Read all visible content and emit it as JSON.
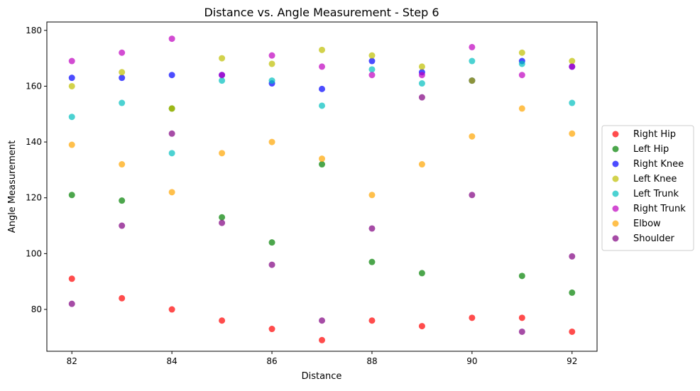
{
  "chart_data": {
    "type": "scatter",
    "title": "Distance vs. Angle Measurement - Step 6",
    "xlabel": "Distance",
    "ylabel": "Angle Measurement",
    "xlim": [
      81.5,
      92.5
    ],
    "ylim": [
      65,
      183
    ],
    "xticks": [
      82,
      84,
      86,
      88,
      90,
      92
    ],
    "yticks": [
      80,
      100,
      120,
      140,
      160,
      180
    ],
    "x": [
      82,
      83,
      84,
      85,
      86,
      87,
      88,
      89,
      90,
      91,
      92
    ],
    "grid": false,
    "legend_position": "center-right, outside plot",
    "series": [
      {
        "name": "Right Hip",
        "color": "#ff0000",
        "values": [
          91,
          84,
          80,
          76,
          73,
          69,
          76,
          74,
          77,
          77,
          72
        ]
      },
      {
        "name": "Left Hip",
        "color": "#008000",
        "values": [
          121,
          119,
          152,
          113,
          104,
          132,
          97,
          93,
          162,
          92,
          86
        ]
      },
      {
        "name": "Right Knee",
        "color": "#0000ff",
        "values": [
          163,
          163,
          164,
          164,
          161,
          159,
          169,
          165,
          162,
          169,
          167
        ]
      },
      {
        "name": "Left Knee",
        "color": "#bfbf00",
        "values": [
          160,
          165,
          152,
          170,
          168,
          173,
          171,
          167,
          162,
          172,
          169
        ]
      },
      {
        "name": "Left Trunk",
        "color": "#00bfbf",
        "values": [
          149,
          154,
          136,
          162,
          162,
          153,
          166,
          161,
          169,
          168,
          154
        ]
      },
      {
        "name": "Right Trunk",
        "color": "#bf00bf",
        "values": [
          169,
          172,
          177,
          164,
          171,
          167,
          164,
          164,
          174,
          164,
          167
        ]
      },
      {
        "name": "Elbow",
        "color": "#ffa500",
        "values": [
          139,
          132,
          122,
          136,
          140,
          134,
          121,
          132,
          142,
          152,
          143
        ]
      },
      {
        "name": "Shoulder",
        "color": "#800080",
        "values": [
          82,
          110,
          143,
          111,
          96,
          76,
          109,
          156,
          121,
          72,
          99
        ]
      }
    ]
  }
}
